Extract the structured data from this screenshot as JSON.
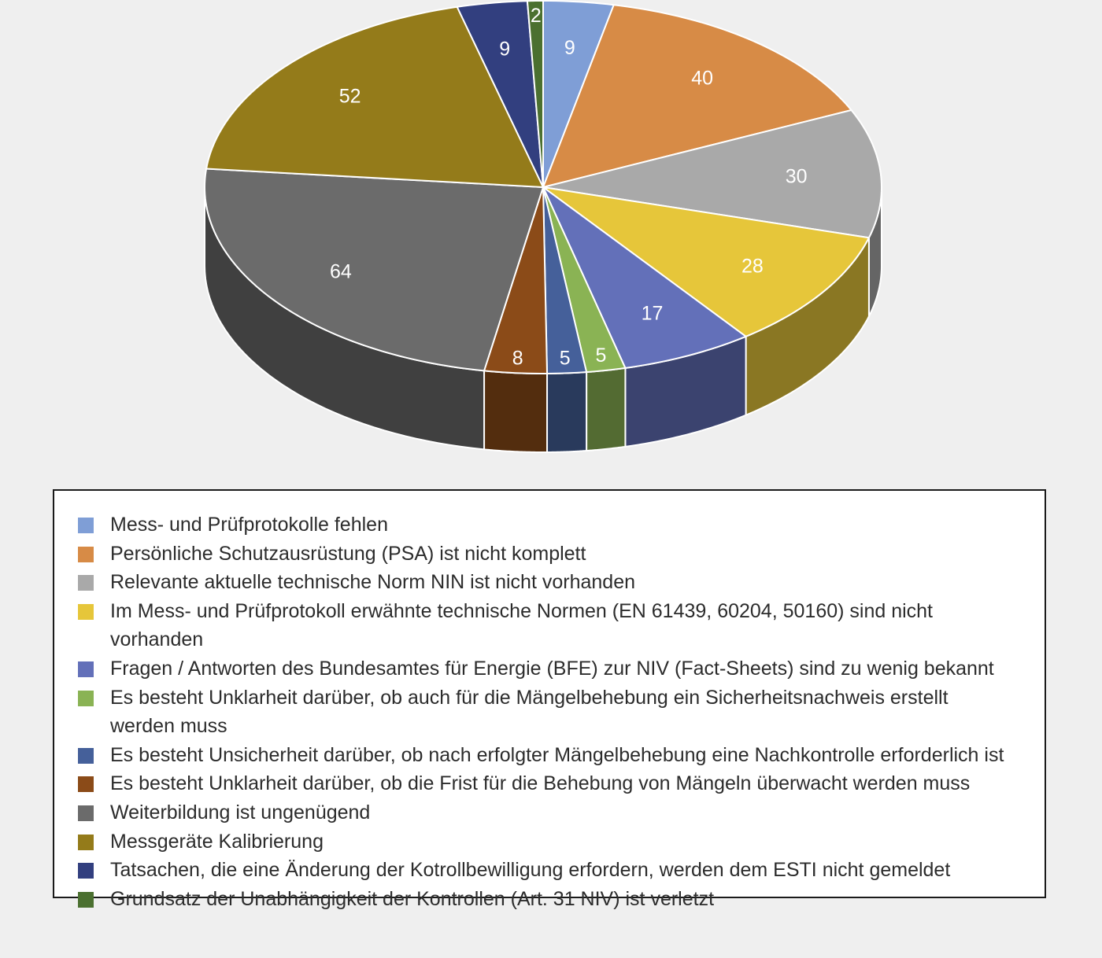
{
  "chart_data": {
    "type": "pie",
    "style": "3d",
    "slices": [
      {
        "label": "Mess- und Prüfprotokolle fehlen",
        "value": 9,
        "color": "#7f9ed6"
      },
      {
        "label": "Persönliche Schutzausrüstung (PSA) ist nicht komplett",
        "value": 40,
        "color": "#d78b46"
      },
      {
        "label": "Relevante aktuelle technische Norm NIN ist nicht vorhanden",
        "value": 30,
        "color": "#a9a9a9"
      },
      {
        "label": "Im Mess- und Prüfprotokoll erwähnte technische Normen (EN 61439, 60204, 50160) sind nicht vorhanden",
        "value": 28,
        "color": "#e6c63a"
      },
      {
        "label": "Fragen / Antworten des Bundesamtes für Energie (BFE) zur NIV (Fact-Sheets) sind zu wenig bekannt",
        "value": 17,
        "color": "#6370b9"
      },
      {
        "label": "Es besteht Unklarheit darüber, ob auch für die Mängelbehebung ein Sicherheitsnachweis erstellt werden muss",
        "value": 5,
        "color": "#8ab354"
      },
      {
        "label": "Es besteht Unsicherheit darüber, ob nach erfolgter Mängelbehebung eine Nachkontrolle erforderlich ist",
        "value": 5,
        "color": "#45609a"
      },
      {
        "label": "Es besteht Unklarheit darüber, ob die Frist für die Behebung von Mängeln überwacht werden muss",
        "value": 8,
        "color": "#8b4b18"
      },
      {
        "label": "Weiterbildung ist ungenügend",
        "value": 64,
        "color": "#6b6b6b"
      },
      {
        "label": "Messgeräte Kalibrierung",
        "value": 52,
        "color": "#947b1a"
      },
      {
        "label": "Tatsachen, die eine Änderung der Kotrollbewilligung erfordern, werden dem ESTI nicht gemeldet",
        "value": 9,
        "color": "#323f7f"
      },
      {
        "label": "Grundsatz der Unabhängigkeit der Kontrollen (Art. 31 NIV) ist verletzt",
        "value": 2,
        "color": "#4b7030"
      }
    ],
    "legend_position": "bottom"
  }
}
